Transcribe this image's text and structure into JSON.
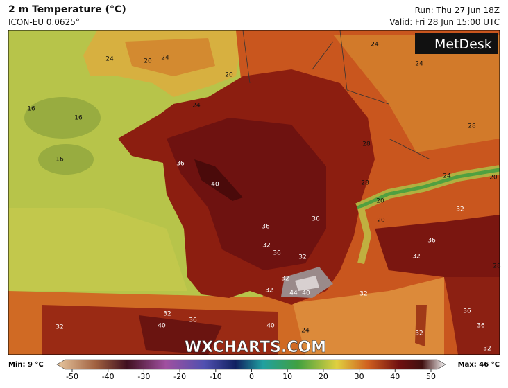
{
  "header": {
    "title": "2 m Temperature (°C)",
    "model": "ICON-EU 0.0625°",
    "run": "Run: Thu 27 Jun 18Z",
    "valid": "Valid: Fri 28 Jun 15:00 UTC"
  },
  "logo": "MetDesk",
  "watermark": "WXCHARTS.COM",
  "contour_labels": [
    24,
    20,
    24,
    24,
    24,
    16,
    16,
    16,
    20,
    24,
    28,
    28,
    36,
    40,
    28,
    24,
    20,
    20,
    20,
    32,
    36,
    36,
    32,
    36,
    32,
    36,
    32,
    28,
    32,
    32,
    44,
    40,
    32,
    32,
    36,
    40,
    32,
    24,
    40,
    36,
    36,
    32,
    32
  ],
  "colorbar": {
    "min": "Min: 9 °C",
    "max": "Max: 46 °C",
    "ticks": [
      -50,
      -40,
      -30,
      -20,
      -10,
      0,
      10,
      20,
      30,
      40,
      50
    ]
  }
}
